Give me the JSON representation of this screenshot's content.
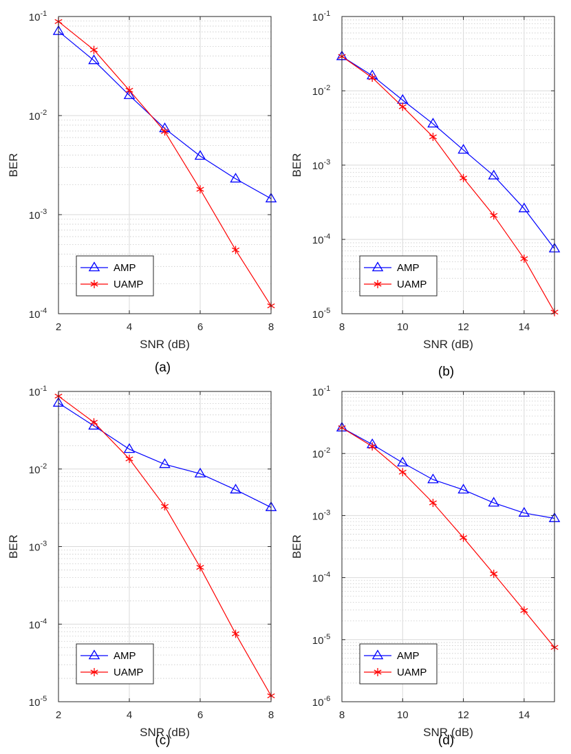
{
  "colors": {
    "amp": "#0000ff",
    "uamp": "#ff0000",
    "axis": "#262626",
    "grid_major": "#d9d9d9",
    "grid_minor": "#c8c8c8"
  },
  "chart_data": [
    {
      "id": "a",
      "type": "line",
      "caption": "(a)",
      "xlabel": "SNR (dB)",
      "ylabel": "BER",
      "y_scale": "log",
      "xlim": [
        2,
        8
      ],
      "ylim": [
        0.0001,
        0.1
      ],
      "xticks": [
        2,
        4,
        6,
        8
      ],
      "xtick_labels": [
        "2",
        "4",
        "6",
        "8"
      ],
      "yticks": [
        0.0001,
        0.001,
        0.01,
        0.1
      ],
      "ytick_labels": [
        {
          "base": "10",
          "exp": "-4"
        },
        {
          "base": "10",
          "exp": "-3"
        },
        {
          "base": "10",
          "exp": "-2"
        },
        {
          "base": "10",
          "exp": "-1"
        }
      ],
      "grid": true,
      "minor_grid": true,
      "legend_position": "bottom-left",
      "series": [
        {
          "name": "AMP",
          "marker": "triangle",
          "color": "#0000ff",
          "x": [
            2,
            3,
            4,
            5,
            6,
            7,
            8
          ],
          "y": [
            0.071,
            0.036,
            0.016,
            0.0074,
            0.0039,
            0.0023,
            0.00145
          ]
        },
        {
          "name": "UAMP",
          "marker": "asterisk",
          "color": "#ff0000",
          "x": [
            2,
            3,
            4,
            5,
            6,
            7,
            8
          ],
          "y": [
            0.089,
            0.046,
            0.018,
            0.0069,
            0.0018,
            0.00044,
            0.00012
          ]
        }
      ]
    },
    {
      "id": "b",
      "type": "line",
      "caption": "(b)",
      "xlabel": "SNR (dB)",
      "ylabel": "BER",
      "y_scale": "log",
      "xlim": [
        8,
        15
      ],
      "ylim": [
        1e-05,
        0.1
      ],
      "xticks": [
        8,
        10,
        12,
        14
      ],
      "xtick_labels": [
        "8",
        "10",
        "12",
        "14"
      ],
      "yticks": [
        1e-05,
        0.0001,
        0.001,
        0.01,
        0.1
      ],
      "ytick_labels": [
        {
          "base": "10",
          "exp": "-5"
        },
        {
          "base": "10",
          "exp": "-4"
        },
        {
          "base": "10",
          "exp": "-3"
        },
        {
          "base": "10",
          "exp": "-2"
        },
        {
          "base": "10",
          "exp": "-1"
        }
      ],
      "grid": true,
      "minor_grid": true,
      "legend_position": "bottom-left",
      "series": [
        {
          "name": "AMP",
          "marker": "triangle",
          "color": "#0000ff",
          "x": [
            8,
            9,
            10,
            11,
            12,
            13,
            14,
            15
          ],
          "y": [
            0.029,
            0.016,
            0.0075,
            0.0036,
            0.0016,
            0.00072,
            0.00026,
            7.5e-05
          ]
        },
        {
          "name": "UAMP",
          "marker": "asterisk",
          "color": "#ff0000",
          "x": [
            8,
            9,
            10,
            11,
            12,
            13,
            14,
            15
          ],
          "y": [
            0.029,
            0.015,
            0.0061,
            0.0024,
            0.00067,
            0.00021,
            5.5e-05,
            1.05e-05
          ]
        }
      ]
    },
    {
      "id": "c",
      "type": "line",
      "caption": "(c)",
      "xlabel": "SNR (dB)",
      "ylabel": "BER",
      "y_scale": "log",
      "xlim": [
        2,
        8
      ],
      "ylim": [
        1e-05,
        0.1
      ],
      "xticks": [
        2,
        4,
        6,
        8
      ],
      "xtick_labels": [
        "2",
        "4",
        "6",
        "8"
      ],
      "yticks": [
        1e-05,
        0.0001,
        0.001,
        0.01,
        0.1
      ],
      "ytick_labels": [
        {
          "base": "10",
          "exp": "-5"
        },
        {
          "base": "10",
          "exp": "-4"
        },
        {
          "base": "10",
          "exp": "-3"
        },
        {
          "base": "10",
          "exp": "-2"
        },
        {
          "base": "10",
          "exp": "-1"
        }
      ],
      "grid": true,
      "minor_grid": true,
      "legend_position": "bottom-left",
      "series": [
        {
          "name": "AMP",
          "marker": "triangle",
          "color": "#0000ff",
          "x": [
            2,
            3,
            4,
            5,
            6,
            7,
            8
          ],
          "y": [
            0.071,
            0.036,
            0.018,
            0.0115,
            0.0087,
            0.0054,
            0.0032
          ]
        },
        {
          "name": "UAMP",
          "marker": "asterisk",
          "color": "#ff0000",
          "x": [
            2,
            3,
            4,
            5,
            6,
            7,
            8
          ],
          "y": [
            0.087,
            0.04,
            0.0135,
            0.0033,
            0.00054,
            7.5e-05,
            1.19e-05
          ]
        }
      ]
    },
    {
      "id": "d",
      "type": "line",
      "caption": "(d)",
      "xlabel": "SNR (dB)",
      "ylabel": "BER",
      "y_scale": "log",
      "xlim": [
        8,
        15
      ],
      "ylim": [
        1e-06,
        0.1
      ],
      "xticks": [
        8,
        10,
        12,
        14
      ],
      "xtick_labels": [
        "8",
        "10",
        "12",
        "14"
      ],
      "yticks": [
        1e-06,
        1e-05,
        0.0001,
        0.001,
        0.01,
        0.1
      ],
      "ytick_labels": [
        {
          "base": "10",
          "exp": "-6"
        },
        {
          "base": "10",
          "exp": "-5"
        },
        {
          "base": "10",
          "exp": "-4"
        },
        {
          "base": "10",
          "exp": "-3"
        },
        {
          "base": "10",
          "exp": "-2"
        },
        {
          "base": "10",
          "exp": "-1"
        }
      ],
      "grid": true,
      "minor_grid": true,
      "legend_position": "bottom-left",
      "series": [
        {
          "name": "AMP",
          "marker": "triangle",
          "color": "#0000ff",
          "x": [
            8,
            9,
            10,
            11,
            12,
            13,
            14,
            15
          ],
          "y": [
            0.026,
            0.014,
            0.0071,
            0.0038,
            0.0026,
            0.0016,
            0.0011,
            0.0009
          ]
        },
        {
          "name": "UAMP",
          "marker": "asterisk",
          "color": "#ff0000",
          "x": [
            8,
            9,
            10,
            11,
            12,
            13,
            14,
            15
          ],
          "y": [
            0.026,
            0.013,
            0.005,
            0.0016,
            0.00044,
            0.000115,
            2.95e-05,
            7.5e-06
          ]
        }
      ]
    }
  ]
}
